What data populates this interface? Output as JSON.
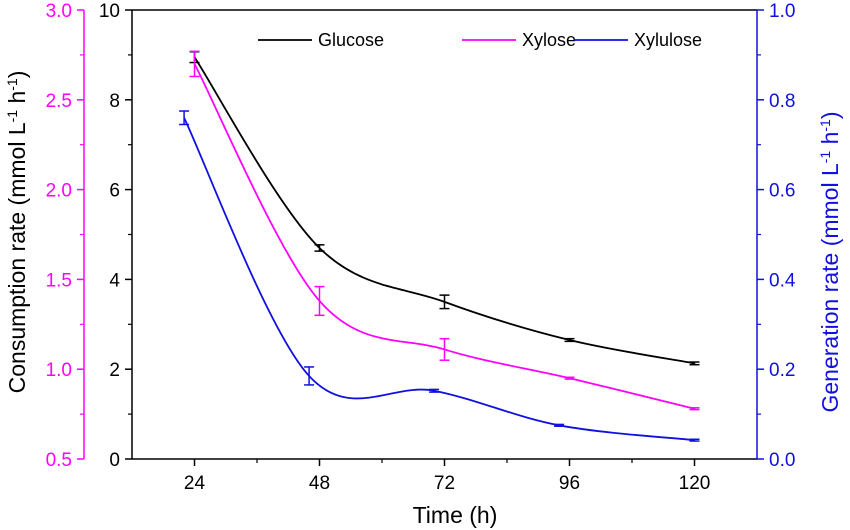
{
  "chart_data": {
    "type": "line",
    "title": "",
    "xlabel": "Time (h)",
    "xlim": [
      12,
      132
    ],
    "xticks": [
      "24",
      "48",
      "72",
      "96",
      "120"
    ],
    "y_axes": {
      "main": {
        "range": [
          0,
          10
        ],
        "ticks": [
          "0",
          "2",
          "4",
          "6",
          "8",
          "10"
        ],
        "color": "#000000"
      },
      "left_secondary": {
        "label_parts": [
          "Consumption rate (mmol L",
          "-1",
          " h",
          "-1",
          ")"
        ],
        "range": [
          0.5,
          3.0
        ],
        "ticks": [
          "0.5",
          "1.0",
          "1.5",
          "2.0",
          "2.5",
          "3.0"
        ],
        "color": "#ff00ff"
      },
      "right": {
        "label_parts": [
          "Generation rate (mmol L",
          "-1",
          " h",
          "-1",
          ")"
        ],
        "range": [
          0.0,
          1.0
        ],
        "ticks": [
          "0.0",
          "0.2",
          "0.4",
          "0.6",
          "0.8",
          "1.0"
        ],
        "color": "#1010e0"
      }
    },
    "grid": false,
    "legend_position": "top-right",
    "series": [
      {
        "name": "Glucose",
        "axis": "main",
        "color": "#000000",
        "x": [
          24,
          48,
          72,
          96,
          120
        ],
        "y": [
          8.95,
          4.7,
          3.5,
          2.65,
          2.13
        ],
        "err": [
          0.12,
          0.07,
          0.15,
          0.03,
          0.03
        ]
      },
      {
        "name": "Xylose",
        "axis": "left_secondary",
        "color": "#ff00ff",
        "x": [
          24,
          48,
          72,
          96,
          120
        ],
        "y": [
          2.7,
          1.38,
          1.11,
          0.95,
          0.78
        ],
        "err": [
          0.07,
          0.08,
          0.06,
          0.005,
          0.005
        ]
      },
      {
        "name": "Xylulose",
        "axis": "right",
        "color": "#1010e0",
        "x": [
          22,
          46,
          70,
          94,
          120
        ],
        "y": [
          0.76,
          0.185,
          0.152,
          0.075,
          0.042
        ],
        "err": [
          0.015,
          0.02,
          0.003,
          0.002,
          0.002
        ]
      }
    ]
  }
}
